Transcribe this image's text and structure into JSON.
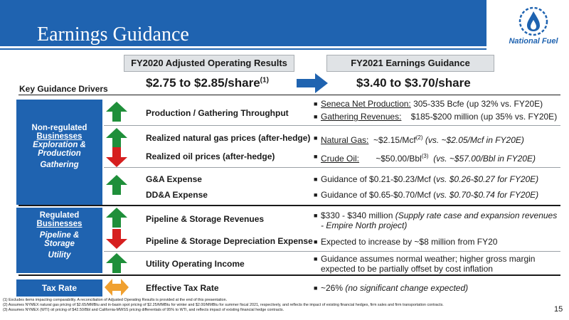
{
  "title": "Earnings Guidance",
  "logo": {
    "text": "National Fuel",
    "color": "#1f63b0"
  },
  "headers": {
    "left": "FY2020 Adjusted Operating Results",
    "right": "FY2021 Earnings Guidance"
  },
  "ranges": {
    "left": "$2.75 to $2.85/share",
    "left_note": "(1)",
    "right": "$3.40 to $3.70/share"
  },
  "key_drivers_label": "Key Guidance Drivers",
  "sections": {
    "nonreg": {
      "line1": "Non-regulated",
      "line2": "Businesses",
      "line3": "Exploration &",
      "line4": "Production",
      "line5": "Gathering"
    },
    "reg": {
      "line1": "Regulated",
      "line2": "Businesses",
      "line3": "Pipeline &",
      "line4": "Storage",
      "line5": "Utility"
    },
    "tax": {
      "line1": "Tax Rate"
    }
  },
  "drivers": {
    "production": "Production / Gathering Throughput",
    "gas": "Realized natural gas prices (after-hedge)",
    "oil": "Realized oil prices (after-hedge)",
    "ga": "G&A Expense",
    "dda": "DD&A Expense",
    "ps_rev": "Pipeline & Storage Revenues",
    "ps_dep": "Pipeline & Storage Depreciation Expense",
    "utility": "Utility Operating Income",
    "tax": "Effective Tax Rate"
  },
  "details": {
    "seneca_label": "Seneca Net Production:",
    "seneca_value": " 305-335 Bcfe (up 32% vs. FY20E)",
    "gathering_label": "Gathering Revenues:",
    "gathering_value": "    $185-$200 million (up 35% vs. FY20E)",
    "gas_label": "Natural Gas:",
    "gas_value": "  ~$2.15/Mcf",
    "gas_note": "(2)",
    "gas_compare": " (vs. ~$2.05/Mcf in FY20E)",
    "oil_label": "Crude Oil:",
    "oil_value": "       ~$50.00/Bbl",
    "oil_note": "(3)",
    "oil_compare": "  (vs. ~$57.00/Bbl in FY20E)",
    "ga_value": "Guidance of $0.21-$0.23/Mcf (",
    "ga_compare": "vs. $0.26-$0.27 for FY20E)",
    "dda_value": "Guidance of $0.65-$0.70/Mcf (",
    "dda_compare": "vs. $0.70-$0.74 for FY20E)",
    "ps_rev_value": "$330 - $340 million ",
    "ps_rev_compare": "(Supply rate case and expansion revenues - Empire North project)",
    "ps_dep_value": "Expected to increase by ~$8 million from FY20",
    "utility_value": "Guidance assumes normal weather; higher gross margin expected to be partially offset by cost inflation",
    "tax_value": "~26% ",
    "tax_compare": "(no significant change expected)"
  },
  "footnotes": [
    "(1)    Excludes items impacting comparability.  A reconciliation of Adjusted Operating Results is provided at the end of this presentation.",
    "(2)    Assumes NYMEX natural gas pricing of $2.65/MMBtu and in-basin spot pricing of $2.25/MMBtu for winter and $2.00/MMBtu for summer fiscal 2021, respectively, and reflects the impact of existing financial hedges, firm sales and firm transportation contracts.",
    "(3)    Assumes NYMEX (WTI) oil pricing of $42.50/Bbl and California-MWSS pricing differentials of 95% to WTI, and reflects impact of existing financial hedge contracts."
  ],
  "page_number": "15",
  "colors": {
    "brand_blue": "#1f63b0",
    "up_green": "#1f8f3a",
    "down_red": "#d61f1f",
    "neutral_orange": "#f0a030"
  }
}
